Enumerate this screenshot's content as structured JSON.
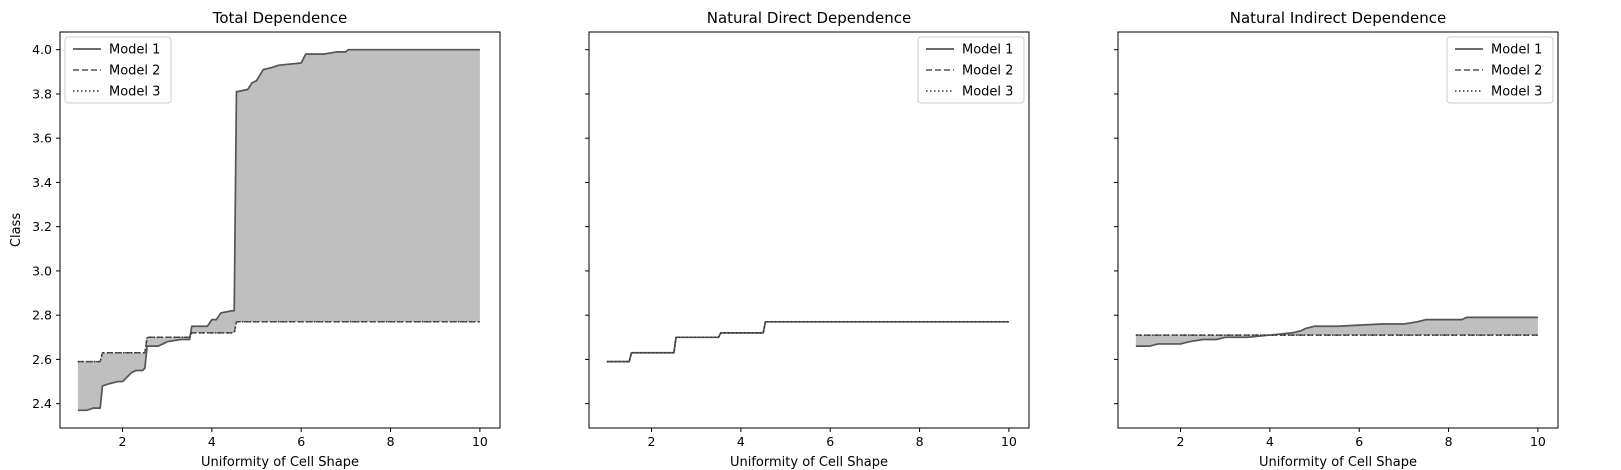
{
  "chart_data": [
    {
      "type": "line",
      "title": "Total Dependence",
      "xlabel": "Uniformity of Cell Shape",
      "ylabel": "Class",
      "xlim": [
        0.6,
        10.45
      ],
      "ylim": [
        2.29,
        4.08
      ],
      "xticks": [
        "2",
        "4",
        "6",
        "8",
        "10"
      ],
      "yticks": [
        "2.4",
        "2.6",
        "2.8",
        "3.0",
        "3.2",
        "3.4",
        "3.6",
        "3.8",
        "4.0"
      ],
      "legend_position": "top-left",
      "shading": "between Model 1 and Model 2",
      "series": [
        {
          "name": "Model 1",
          "style": "solid",
          "x": [
            1.0,
            1.2,
            1.35,
            1.5,
            1.55,
            1.7,
            1.9,
            2.0,
            2.1,
            2.2,
            2.3,
            2.45,
            2.5,
            2.55,
            2.8,
            2.9,
            3.0,
            3.3,
            3.5,
            3.55,
            3.9,
            4.0,
            4.1,
            4.2,
            4.45,
            4.5,
            4.55,
            4.8,
            4.9,
            5.0,
            5.15,
            5.35,
            5.5,
            6.0,
            6.1,
            6.5,
            6.8,
            7.0,
            7.05,
            10.0
          ],
          "y": [
            2.37,
            2.37,
            2.38,
            2.38,
            2.48,
            2.49,
            2.5,
            2.5,
            2.52,
            2.54,
            2.55,
            2.55,
            2.56,
            2.66,
            2.66,
            2.67,
            2.68,
            2.69,
            2.69,
            2.75,
            2.75,
            2.78,
            2.78,
            2.81,
            2.82,
            2.82,
            3.81,
            3.82,
            3.85,
            3.86,
            3.91,
            3.92,
            3.93,
            3.94,
            3.98,
            3.98,
            3.99,
            3.99,
            4.0,
            4.0
          ]
        },
        {
          "name": "Model 2",
          "style": "dashed",
          "x": [
            1.0,
            1.5,
            1.55,
            2.0,
            2.5,
            2.55,
            3.0,
            3.5,
            3.55,
            4.0,
            4.5,
            4.55,
            5.5,
            6.5,
            6.55,
            10.0
          ],
          "y": [
            2.59,
            2.59,
            2.63,
            2.63,
            2.63,
            2.7,
            2.7,
            2.7,
            2.72,
            2.72,
            2.72,
            2.77,
            2.77,
            2.77,
            2.77,
            2.77
          ]
        },
        {
          "name": "Model 3",
          "style": "dotted",
          "x": [
            1.0,
            1.5,
            1.55,
            2.0,
            2.5,
            2.55,
            3.0,
            3.5,
            3.55,
            4.0,
            4.5,
            4.55,
            5.5,
            6.5,
            6.55,
            10.0
          ],
          "y": [
            2.59,
            2.59,
            2.63,
            2.63,
            2.63,
            2.7,
            2.7,
            2.7,
            2.72,
            2.72,
            2.72,
            2.77,
            2.77,
            2.77,
            2.77,
            2.77
          ]
        }
      ]
    },
    {
      "type": "line",
      "title": "Natural Direct Dependence",
      "xlabel": "Uniformity of Cell Shape",
      "ylabel": "",
      "xlim": [
        0.6,
        10.45
      ],
      "ylim": [
        2.29,
        4.08
      ],
      "xticks": [
        "2",
        "4",
        "6",
        "8",
        "10"
      ],
      "yticks": [],
      "legend_position": "top-right",
      "shading": "between Model 1 and Model 2",
      "series": [
        {
          "name": "Model 1",
          "style": "solid",
          "x": [
            1.0,
            1.5,
            1.55,
            2.0,
            2.5,
            2.55,
            3.0,
            3.5,
            3.55,
            4.0,
            4.5,
            4.55,
            5.5,
            6.5,
            6.55,
            10.0
          ],
          "y": [
            2.59,
            2.59,
            2.63,
            2.63,
            2.63,
            2.7,
            2.7,
            2.7,
            2.72,
            2.72,
            2.72,
            2.77,
            2.77,
            2.77,
            2.77,
            2.77
          ]
        },
        {
          "name": "Model 2",
          "style": "dashed",
          "x": [
            1.0,
            1.5,
            1.55,
            2.0,
            2.5,
            2.55,
            3.0,
            3.5,
            3.55,
            4.0,
            4.5,
            4.55,
            5.5,
            6.5,
            6.55,
            10.0
          ],
          "y": [
            2.59,
            2.59,
            2.63,
            2.63,
            2.63,
            2.7,
            2.7,
            2.7,
            2.72,
            2.72,
            2.72,
            2.77,
            2.77,
            2.77,
            2.77,
            2.77
          ]
        },
        {
          "name": "Model 3",
          "style": "dotted",
          "x": [
            1.0,
            1.5,
            1.55,
            2.0,
            2.5,
            2.55,
            3.0,
            3.5,
            3.55,
            4.0,
            4.5,
            4.55,
            5.5,
            6.5,
            6.55,
            10.0
          ],
          "y": [
            2.59,
            2.59,
            2.63,
            2.63,
            2.63,
            2.7,
            2.7,
            2.7,
            2.72,
            2.72,
            2.72,
            2.77,
            2.77,
            2.77,
            2.77,
            2.77
          ]
        }
      ]
    },
    {
      "type": "line",
      "title": "Natural Indirect Dependence",
      "xlabel": "Uniformity of Cell Shape",
      "ylabel": "",
      "xlim": [
        0.6,
        10.45
      ],
      "ylim": [
        2.29,
        4.08
      ],
      "xticks": [
        "2",
        "4",
        "6",
        "8",
        "10"
      ],
      "yticks": [],
      "legend_position": "top-right",
      "shading": "between Model 1 and Model 2",
      "series": [
        {
          "name": "Model 1",
          "style": "solid",
          "x": [
            1.0,
            1.3,
            1.5,
            2.0,
            2.2,
            2.5,
            2.8,
            3.0,
            3.5,
            4.0,
            4.5,
            4.7,
            4.8,
            5.0,
            5.5,
            6.0,
            6.5,
            7.0,
            7.3,
            7.5,
            8.0,
            8.3,
            8.4,
            10.0
          ],
          "y": [
            2.66,
            2.66,
            2.67,
            2.67,
            2.68,
            2.69,
            2.69,
            2.7,
            2.7,
            2.71,
            2.72,
            2.73,
            2.74,
            2.75,
            2.75,
            2.755,
            2.76,
            2.76,
            2.77,
            2.78,
            2.78,
            2.78,
            2.79,
            2.79
          ]
        },
        {
          "name": "Model 2",
          "style": "dashed",
          "x": [
            1.0,
            10.0
          ],
          "y": [
            2.71,
            2.71
          ]
        },
        {
          "name": "Model 3",
          "style": "dotted",
          "x": [
            1.0,
            10.0
          ],
          "y": [
            2.71,
            2.71
          ]
        }
      ]
    }
  ]
}
